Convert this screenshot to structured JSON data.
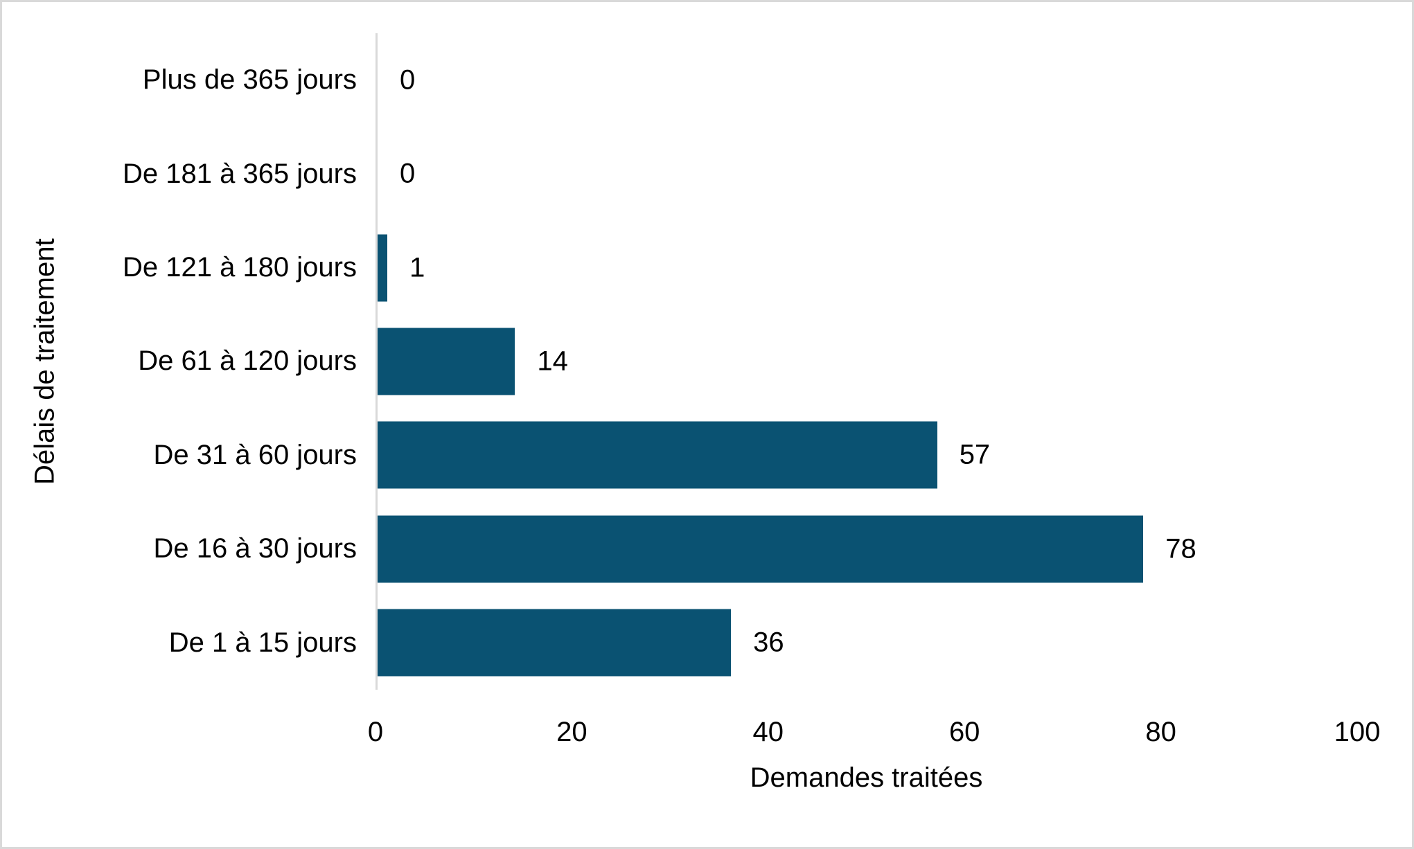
{
  "chart_data": {
    "type": "bar",
    "orientation": "horizontal",
    "title": "",
    "xlabel": "Demandes traitées",
    "ylabel": "Délais de traitement",
    "categories": [
      "Plus de 365 jours",
      "De 181 à 365 jours",
      "De 121 à 180 jours",
      "De 61 à 120 jours",
      "De 31 à 60 jours",
      "De 16 à 30 jours",
      "De 1 à 15 jours"
    ],
    "values": [
      0,
      0,
      1,
      14,
      57,
      78,
      36
    ],
    "xlim": [
      0,
      100
    ],
    "xticks": [
      0,
      20,
      40,
      60,
      80,
      100
    ],
    "data_labels": true,
    "grid": false,
    "legend": false,
    "colors": {
      "bar": "#0A5272",
      "axis_line": "#D9D9D9",
      "canvas_border": "#D9D9D9",
      "text": "#000000",
      "background": "#FFFFFF"
    }
  }
}
